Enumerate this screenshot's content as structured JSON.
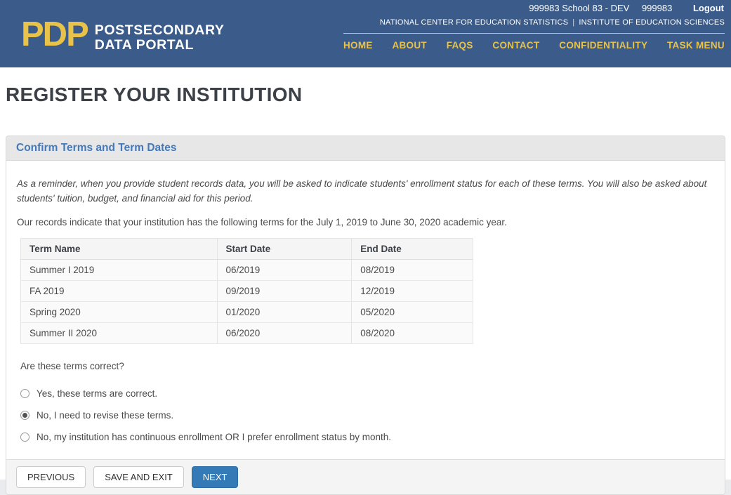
{
  "header": {
    "account": {
      "school_line": "999983 School 83 - DEV",
      "account_id": "999983",
      "logout_label": "Logout"
    },
    "logo": {
      "abbr": "PDP",
      "line1": "POSTSECONDARY",
      "line2": "DATA PORTAL"
    },
    "agency": {
      "left": "NATIONAL CENTER FOR EDUCATION STATISTICS",
      "separator": "|",
      "right": "INSTITUTE OF EDUCATION SCIENCES"
    },
    "nav": [
      {
        "label": "HOME"
      },
      {
        "label": "ABOUT"
      },
      {
        "label": "FAQS"
      },
      {
        "label": "CONTACT"
      },
      {
        "label": "CONFIDENTIALITY"
      },
      {
        "label": "TASK MENU"
      }
    ]
  },
  "page": {
    "title": "REGISTER YOUR INSTITUTION"
  },
  "panel": {
    "title": "Confirm Terms and Term Dates",
    "reminder": "As a reminder, when you provide student records data, you will be asked to indicate students' enrollment status for each of these terms. You will also be asked about students' tuition, budget, and financial aid for this period.",
    "records_note": "Our records indicate that your institution has the following terms for the July 1, 2019 to June 30, 2020 academic year.",
    "table": {
      "columns": [
        "Term Name",
        "Start Date",
        "End Date"
      ],
      "rows": [
        [
          "Summer I 2019",
          "06/2019",
          "08/2019"
        ],
        [
          "FA 2019",
          "09/2019",
          "12/2019"
        ],
        [
          "Spring 2020",
          "01/2020",
          "05/2020"
        ],
        [
          "Summer II 2020",
          "06/2020",
          "08/2020"
        ]
      ]
    },
    "question": "Are these terms correct?",
    "options": [
      {
        "label": "Yes, these terms are correct.",
        "selected": false
      },
      {
        "label": "No, I need to revise these terms.",
        "selected": true
      },
      {
        "label": "No, my institution has continuous enrollment OR I prefer enrollment status by month.",
        "selected": false
      }
    ],
    "buttons": {
      "previous": "PREVIOUS",
      "save_exit": "SAVE AND EXIT",
      "next": "NEXT"
    }
  },
  "colors": {
    "header_bg": "#3b5c8a",
    "brand_gold": "#e9c24a",
    "panel_title_blue": "#4479bb",
    "primary_btn": "#337ab7"
  }
}
